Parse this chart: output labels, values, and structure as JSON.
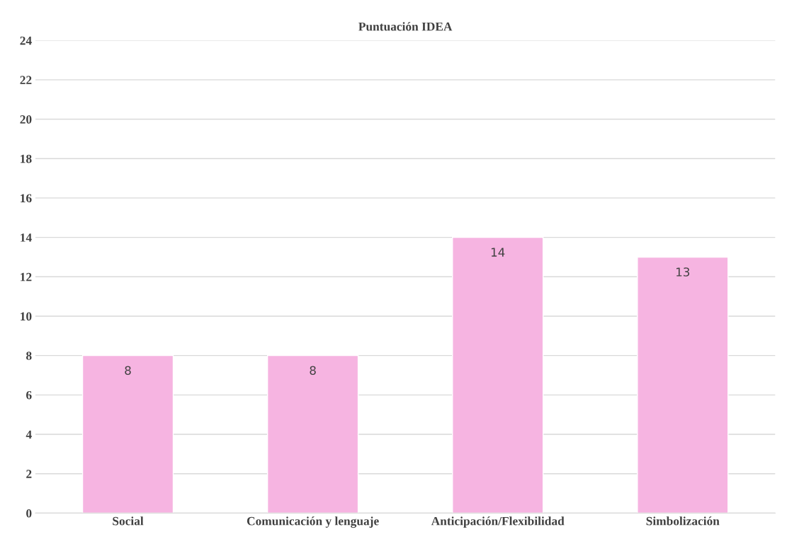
{
  "chart_data": {
    "type": "bar",
    "title": "Puntuación IDEA",
    "categories": [
      "Social",
      "Comunicación y lenguaje",
      "Anticipación/Flexibilidad",
      "Simbolización"
    ],
    "values": [
      8,
      8,
      14,
      13
    ],
    "color": "#f6b4e1",
    "ylim": [
      0,
      24
    ],
    "yticks": [
      0,
      2,
      4,
      6,
      8,
      10,
      12,
      14,
      16,
      18,
      20,
      22,
      24
    ],
    "grid": "y",
    "data_labels": true
  }
}
